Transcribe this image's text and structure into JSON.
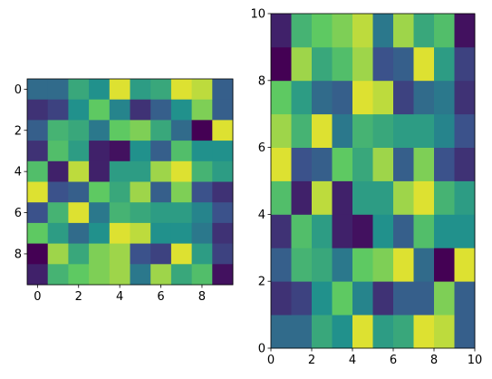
{
  "colormap": [
    "#440154",
    "#3b528b",
    "#21918c",
    "#5ec962",
    "#fde725"
  ],
  "chart_data": [
    {
      "type": "heatmap",
      "origin": "upper",
      "title": "",
      "xlabel": "",
      "ylabel": "",
      "xlim": [
        -0.5,
        9.5
      ],
      "ylim": [
        9.5,
        -0.5
      ],
      "xticks": [
        "0",
        "2",
        "4",
        "6",
        "8"
      ],
      "yticks": [
        "0",
        "2",
        "4",
        "6",
        "8"
      ],
      "values": [
        [
          0.35,
          0.35,
          0.6,
          0.5,
          0.95,
          0.55,
          0.6,
          0.95,
          0.9,
          0.3
        ],
        [
          0.15,
          0.2,
          0.5,
          0.75,
          0.45,
          0.15,
          0.3,
          0.5,
          0.8,
          0.3
        ],
        [
          0.3,
          0.65,
          0.6,
          0.4,
          0.75,
          0.8,
          0.6,
          0.35,
          0.0,
          0.95
        ],
        [
          0.15,
          0.7,
          0.55,
          0.1,
          0.05,
          0.5,
          0.3,
          0.7,
          0.5,
          0.5
        ],
        [
          0.7,
          0.1,
          0.9,
          0.1,
          0.55,
          0.55,
          0.85,
          0.95,
          0.65,
          0.55
        ],
        [
          0.95,
          0.25,
          0.3,
          0.75,
          0.6,
          0.85,
          0.3,
          0.8,
          0.25,
          0.15
        ],
        [
          0.25,
          0.65,
          0.95,
          0.4,
          0.65,
          0.6,
          0.55,
          0.55,
          0.45,
          0.25
        ],
        [
          0.75,
          0.55,
          0.35,
          0.5,
          0.95,
          0.9,
          0.5,
          0.5,
          0.4,
          0.15
        ],
        [
          0.0,
          0.85,
          0.6,
          0.8,
          0.85,
          0.25,
          0.2,
          0.95,
          0.55,
          0.2
        ],
        [
          0.1,
          0.65,
          0.75,
          0.8,
          0.85,
          0.4,
          0.85,
          0.6,
          0.7,
          0.05
        ]
      ]
    },
    {
      "type": "heatmap",
      "origin": "lower",
      "title": "",
      "xlabel": "",
      "ylabel": "",
      "xlim": [
        0,
        10
      ],
      "ylim": [
        0,
        10
      ],
      "xticks": [
        "0",
        "2",
        "4",
        "6",
        "8",
        "10"
      ],
      "yticks": [
        "0",
        "2",
        "4",
        "6",
        "8",
        "10"
      ],
      "values": [
        [
          0.35,
          0.35,
          0.6,
          0.5,
          0.95,
          0.55,
          0.6,
          0.95,
          0.9,
          0.3
        ],
        [
          0.15,
          0.2,
          0.5,
          0.75,
          0.45,
          0.15,
          0.3,
          0.3,
          0.8,
          0.3
        ],
        [
          0.3,
          0.65,
          0.6,
          0.4,
          0.75,
          0.8,
          0.95,
          0.35,
          0.0,
          0.95
        ],
        [
          0.15,
          0.7,
          0.55,
          0.1,
          0.05,
          0.5,
          0.3,
          0.7,
          0.5,
          0.5
        ],
        [
          0.7,
          0.1,
          0.9,
          0.1,
          0.55,
          0.55,
          0.85,
          0.95,
          0.65,
          0.55
        ],
        [
          0.95,
          0.25,
          0.3,
          0.75,
          0.6,
          0.85,
          0.3,
          0.8,
          0.25,
          0.15
        ],
        [
          0.85,
          0.65,
          0.95,
          0.4,
          0.65,
          0.6,
          0.55,
          0.55,
          0.45,
          0.25
        ],
        [
          0.75,
          0.55,
          0.35,
          0.3,
          0.95,
          0.9,
          0.2,
          0.35,
          0.4,
          0.15
        ],
        [
          0.0,
          0.85,
          0.6,
          0.7,
          0.85,
          0.25,
          0.3,
          0.95,
          0.55,
          0.2
        ],
        [
          0.1,
          0.65,
          0.75,
          0.8,
          0.9,
          0.4,
          0.85,
          0.6,
          0.7,
          0.05
        ]
      ]
    }
  ]
}
